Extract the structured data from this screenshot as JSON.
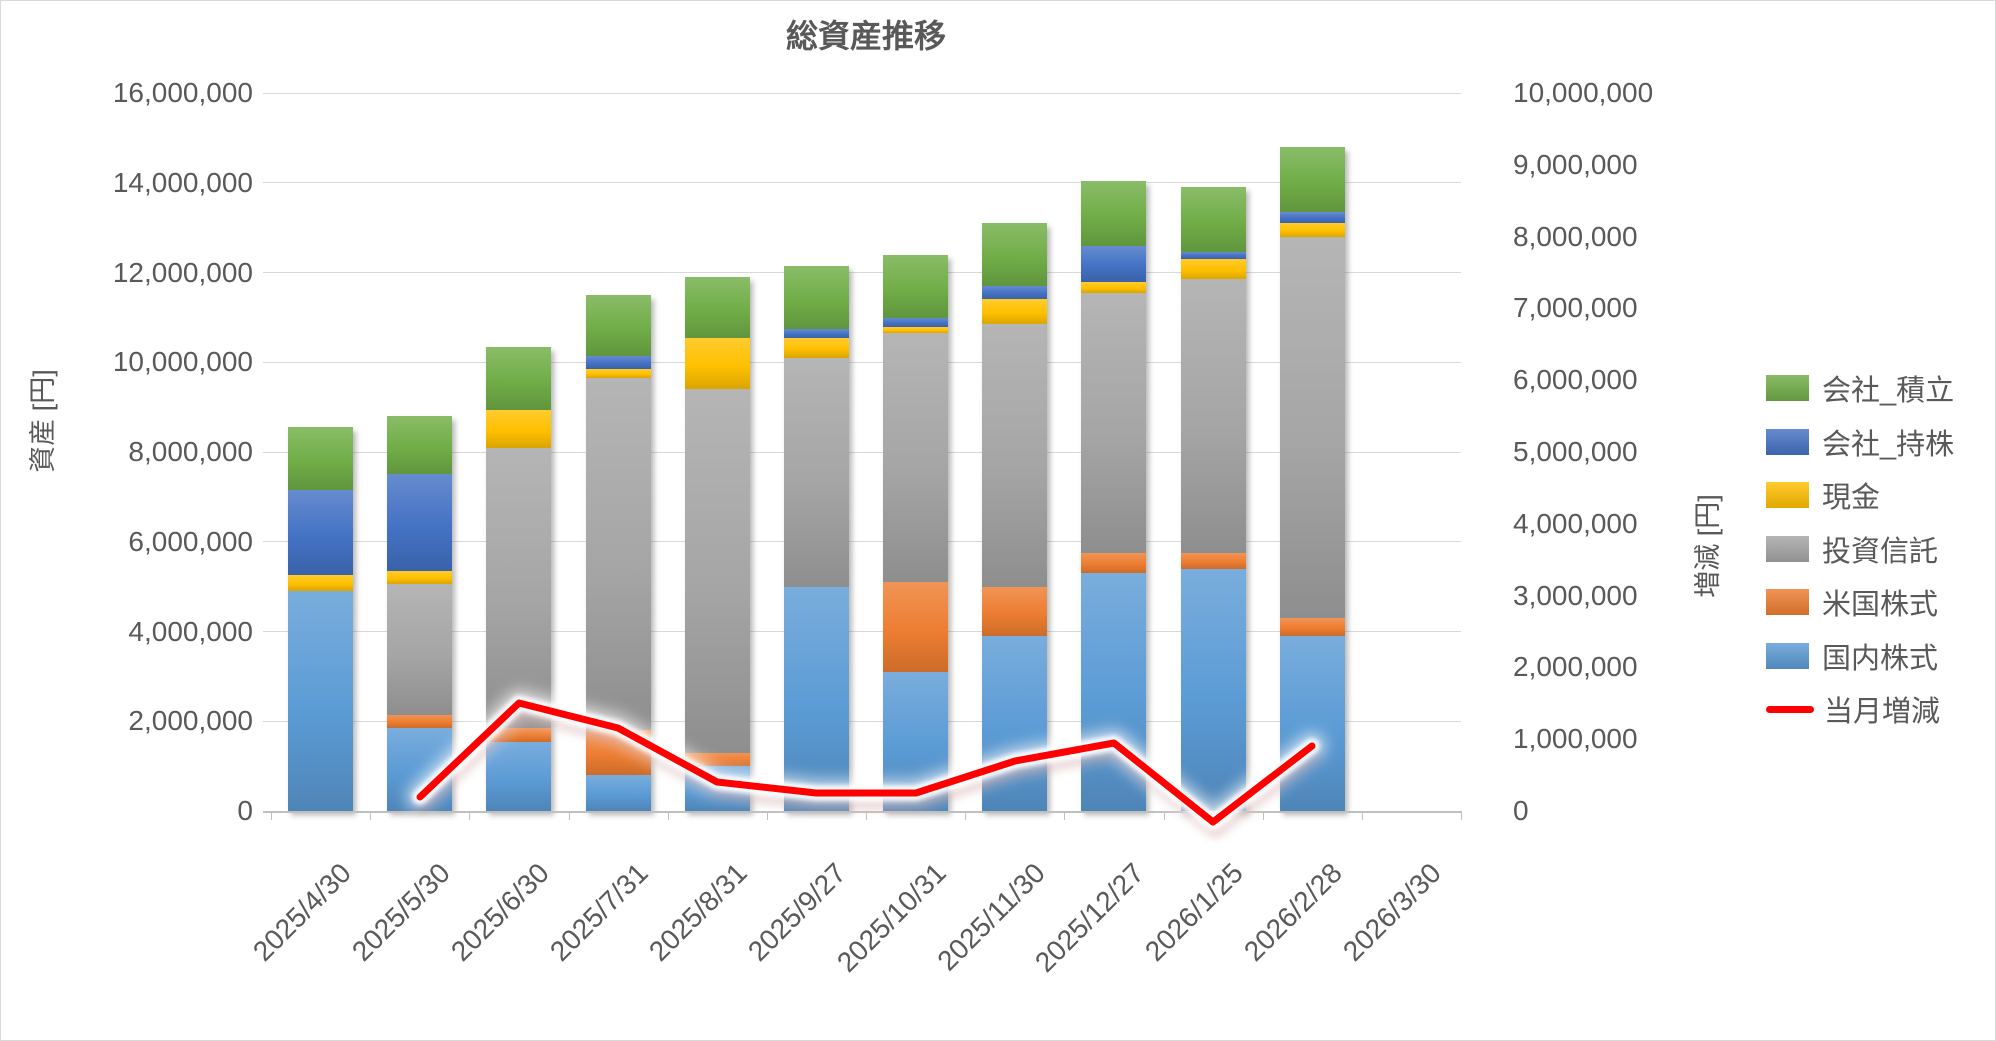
{
  "title": "総資産推移",
  "left_axis": {
    "title": "資産 [円]",
    "max": 16000000,
    "min": 0,
    "step": 2000000,
    "ticks": [
      "16,000,000",
      "14,000,000",
      "12,000,000",
      "10,000,000",
      "8,000,000",
      "6,000,000",
      "4,000,000",
      "2,000,000",
      "0"
    ]
  },
  "right_axis": {
    "title": "増減 [円]",
    "max": 10000000,
    "min": 0,
    "step": 1000000,
    "ticks": [
      "10,000,000",
      "9,000,000",
      "8,000,000",
      "7,000,000",
      "6,000,000",
      "5,000,000",
      "4,000,000",
      "3,000,000",
      "2,000,000",
      "1,000,000",
      "0"
    ]
  },
  "chart_data": {
    "type": "bar",
    "subtype": "stacked-column-with-line",
    "title": "総資産推移",
    "xlabel": "",
    "ylabel_left": "資産 [円]",
    "ylabel_right": "増減 [円]",
    "ylim_left": [
      0,
      16000000
    ],
    "ylim_right": [
      0,
      10000000
    ],
    "grid": true,
    "legend_position": "right",
    "categories": [
      "2025/4/30",
      "2025/5/30",
      "2025/6/30",
      "2025/7/31",
      "2025/8/31",
      "2025/9/27",
      "2025/10/31",
      "2025/11/30",
      "2025/12/27",
      "2026/1/25",
      "2026/2/28",
      "2026/3/30"
    ],
    "series": [
      {
        "name": "国内株式",
        "color": "#5B9BD5",
        "values": [
          4900000,
          1850000,
          1550000,
          800000,
          1000000,
          5000000,
          3100000,
          3900000,
          5300000,
          5400000,
          3900000,
          0
        ]
      },
      {
        "name": "米国株式",
        "color": "#ED7D31",
        "values": [
          0,
          300000,
          300000,
          1000000,
          300000,
          0,
          2000000,
          1100000,
          450000,
          350000,
          400000,
          0
        ]
      },
      {
        "name": "投資信託",
        "color": "#A5A5A5",
        "values": [
          0,
          2900000,
          6250000,
          7850000,
          8100000,
          5100000,
          5550000,
          5850000,
          5800000,
          6100000,
          8500000,
          0
        ]
      },
      {
        "name": "現金",
        "color": "#FFC000",
        "values": [
          350000,
          300000,
          850000,
          200000,
          1150000,
          450000,
          150000,
          550000,
          250000,
          450000,
          300000,
          0
        ]
      },
      {
        "name": "会社_持株",
        "color": "#4472C4",
        "values": [
          1900000,
          2150000,
          0,
          300000,
          0,
          200000,
          200000,
          300000,
          800000,
          150000,
          250000,
          0
        ]
      },
      {
        "name": "会社_積立",
        "color": "#70AD47",
        "values": [
          1400000,
          1300000,
          1400000,
          1350000,
          1350000,
          1400000,
          1400000,
          1400000,
          1450000,
          1450000,
          1450000,
          0
        ]
      }
    ],
    "line_series": {
      "name": "当月増減",
      "color": "#FF0000",
      "axis": "right",
      "values": [
        null,
        200000,
        1500000,
        1150000,
        400000,
        250000,
        250000,
        700000,
        950000,
        -150000,
        900000,
        null
      ]
    }
  },
  "legend": {
    "items": [
      {
        "label": "会社_積立",
        "color": "#70AD47",
        "type": "swatch"
      },
      {
        "label": "会社_持株",
        "color": "#4472C4",
        "type": "swatch"
      },
      {
        "label": "現金",
        "color": "#FFC000",
        "type": "swatch"
      },
      {
        "label": "投資信託",
        "color": "#A5A5A5",
        "type": "swatch"
      },
      {
        "label": "米国株式",
        "color": "#ED7D31",
        "type": "swatch"
      },
      {
        "label": "国内株式",
        "color": "#5B9BD5",
        "type": "swatch"
      },
      {
        "label": "当月増減",
        "color": "#FF0000",
        "type": "line"
      }
    ]
  },
  "colors": {
    "text": "#595959",
    "gridline": "#D9D9D9",
    "axisline": "#BFBFBF",
    "background": "#FFFFFF"
  }
}
